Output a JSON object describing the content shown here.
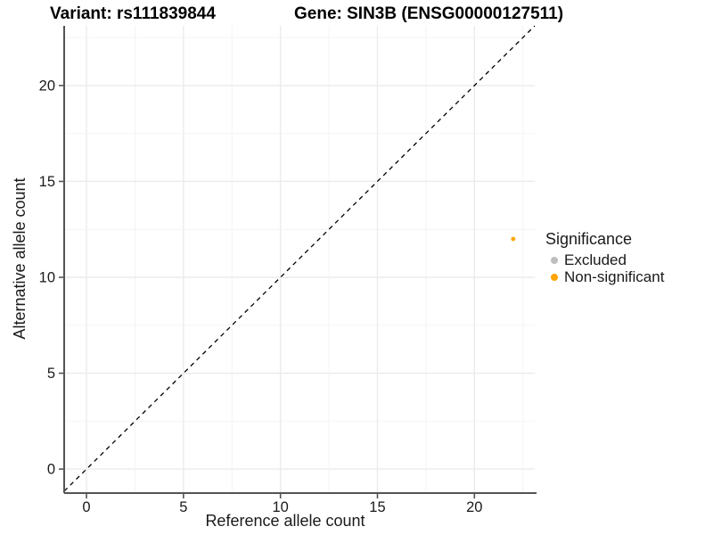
{
  "figure": {
    "background": "#ffffff"
  },
  "chart_data": {
    "type": "scatter",
    "titles": {
      "left": "Variant: rs111839844",
      "right": "Gene: SIN3B (ENSG00000127511)"
    },
    "xlabel": "Reference allele count",
    "ylabel": "Alternative allele count",
    "x_ticks": [
      0,
      5,
      10,
      15,
      20
    ],
    "y_ticks": [
      0,
      5,
      10,
      15,
      20
    ],
    "xlim": [
      -1.15,
      23.11
    ],
    "ylim": [
      -1.25,
      23.11
    ],
    "grid": {
      "major_every": 5,
      "minor_every": 2.5,
      "major_color": "#ebebeb",
      "minor_color": "#f4f4f4"
    },
    "identity_line": {
      "equation": "y = x",
      "style": "dashed",
      "color": "#000000"
    },
    "points": [
      {
        "x": 22,
        "y": 12,
        "series": "Non-significant",
        "color": "#FFA500",
        "radius": 2.4
      }
    ],
    "legend": {
      "title": "Significance",
      "position": "right",
      "entries": [
        {
          "label": "Excluded",
          "color": "#BEBEBE"
        },
        {
          "label": "Non-significant",
          "color": "#FFA500"
        }
      ]
    },
    "axis_color": "#545454",
    "text_color": "#1a1a1a"
  }
}
